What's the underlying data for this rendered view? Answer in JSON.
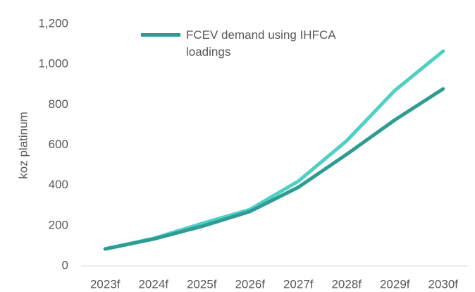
{
  "chart_data": {
    "type": "line",
    "y_label": "koz platinum",
    "categories": [
      "2023f",
      "2024f",
      "2025f",
      "2026f",
      "2027f",
      "2028f",
      "2029f",
      "2030f"
    ],
    "series": [
      {
        "name": "FCEV demand using IHFCA loadings",
        "color": "#2e9c92",
        "values": [
          84,
          133,
          196,
          270,
          390,
          553,
          724,
          878
        ]
      },
      {
        "color": "#4fd0c4",
        "values": [
          84,
          136,
          210,
          280,
          420,
          620,
          870,
          1065
        ]
      }
    ],
    "ylim": [
      0,
      1200
    ],
    "yticks": [
      0,
      200,
      400,
      600,
      800,
      {
        "value": 1000,
        "label": "1,000"
      },
      {
        "value": 1200,
        "label": "1,200"
      }
    ],
    "legend": "top"
  }
}
